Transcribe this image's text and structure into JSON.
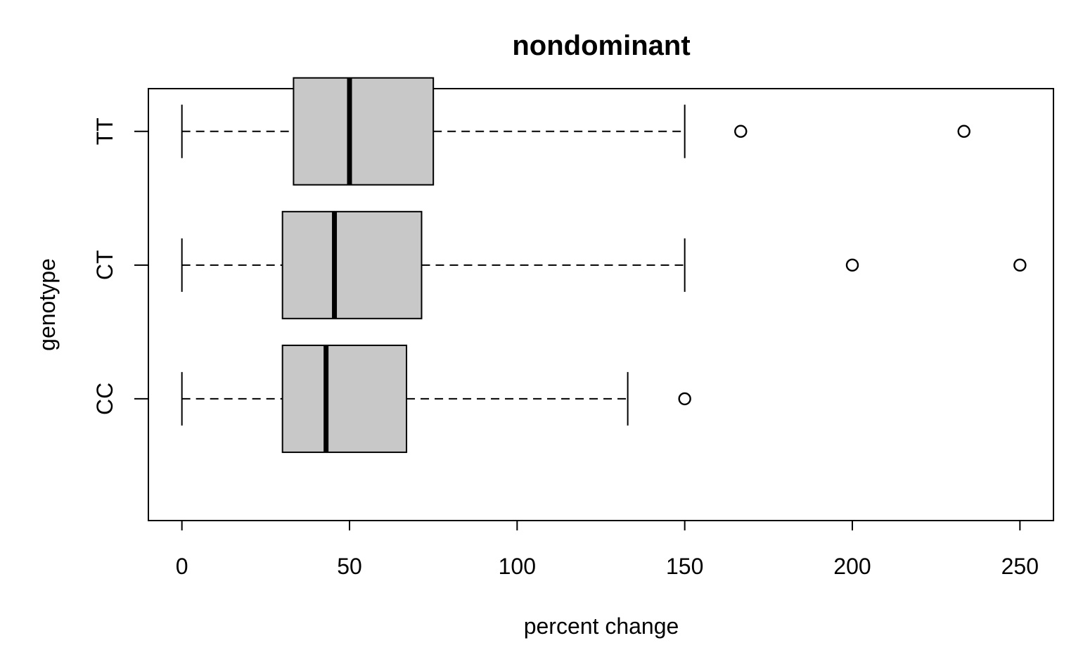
{
  "chart_data": {
    "type": "boxplot",
    "orientation": "horizontal",
    "title": "nondominant",
    "xlabel": "percent change",
    "ylabel": "genotype",
    "xlim": [
      -10,
      260
    ],
    "xticks": [
      0,
      50,
      100,
      150,
      200,
      250
    ],
    "grid": false,
    "legend": "none",
    "box_fill": "#c8c8c8",
    "series": [
      {
        "category": "CC",
        "whisker_low": 0,
        "q1": 30,
        "median": 43,
        "q3": 67,
        "whisker_high": 133,
        "outliers": [
          150
        ]
      },
      {
        "category": "CT",
        "whisker_low": 0,
        "q1": 30,
        "median": 45.5,
        "q3": 71.5,
        "whisker_high": 150,
        "outliers": [
          200,
          250
        ]
      },
      {
        "category": "TT",
        "whisker_low": 0,
        "q1": 33.3,
        "median": 50,
        "q3": 75,
        "whisker_high": 150,
        "outliers": [
          166.7,
          233.3
        ]
      }
    ]
  }
}
